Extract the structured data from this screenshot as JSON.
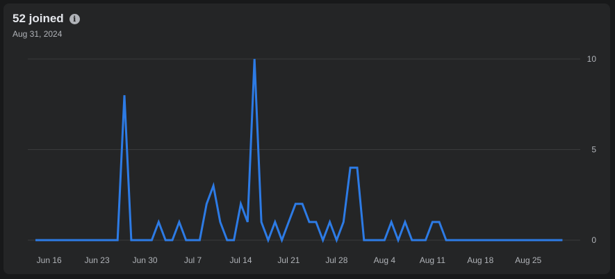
{
  "header": {
    "title": "52 joined",
    "subtitle": "Aug 31, 2024",
    "info_icon": "info-icon"
  },
  "colors": {
    "line": "#2d7be5",
    "grid": "#3a3b3c",
    "axis_text": "#b0b3b8"
  },
  "chart_data": {
    "type": "line",
    "x_tick_labels": [
      "Jun 16",
      "Jun 23",
      "Jun 30",
      "Jul 7",
      "Jul 14",
      "Jul 21",
      "Jul 28",
      "Aug 4",
      "Aug 11",
      "Aug 18",
      "Aug 25"
    ],
    "y_tick_labels": [
      "10",
      "5",
      "0"
    ],
    "ylim": [
      0,
      10
    ],
    "x_start": "Jun 14",
    "x_end": "Aug 31",
    "grid": true,
    "y_axis_position": "right",
    "series": [
      {
        "values": [
          0,
          0,
          0,
          0,
          0,
          0,
          0,
          0,
          0,
          0,
          0,
          0,
          0,
          8,
          0,
          0,
          0,
          0,
          1,
          0,
          0,
          1,
          0,
          0,
          0,
          2,
          3,
          1,
          0,
          0,
          2,
          1,
          10,
          1,
          0,
          1,
          0,
          1,
          2,
          2,
          1,
          1,
          0,
          1,
          0,
          1,
          4,
          4,
          0,
          0,
          0,
          0,
          1,
          0,
          1,
          0,
          0,
          0,
          1,
          1,
          0,
          0,
          0,
          0,
          0,
          0,
          0,
          0,
          0,
          0,
          0,
          0,
          0,
          0,
          0,
          0,
          0,
          0
        ]
      }
    ]
  }
}
